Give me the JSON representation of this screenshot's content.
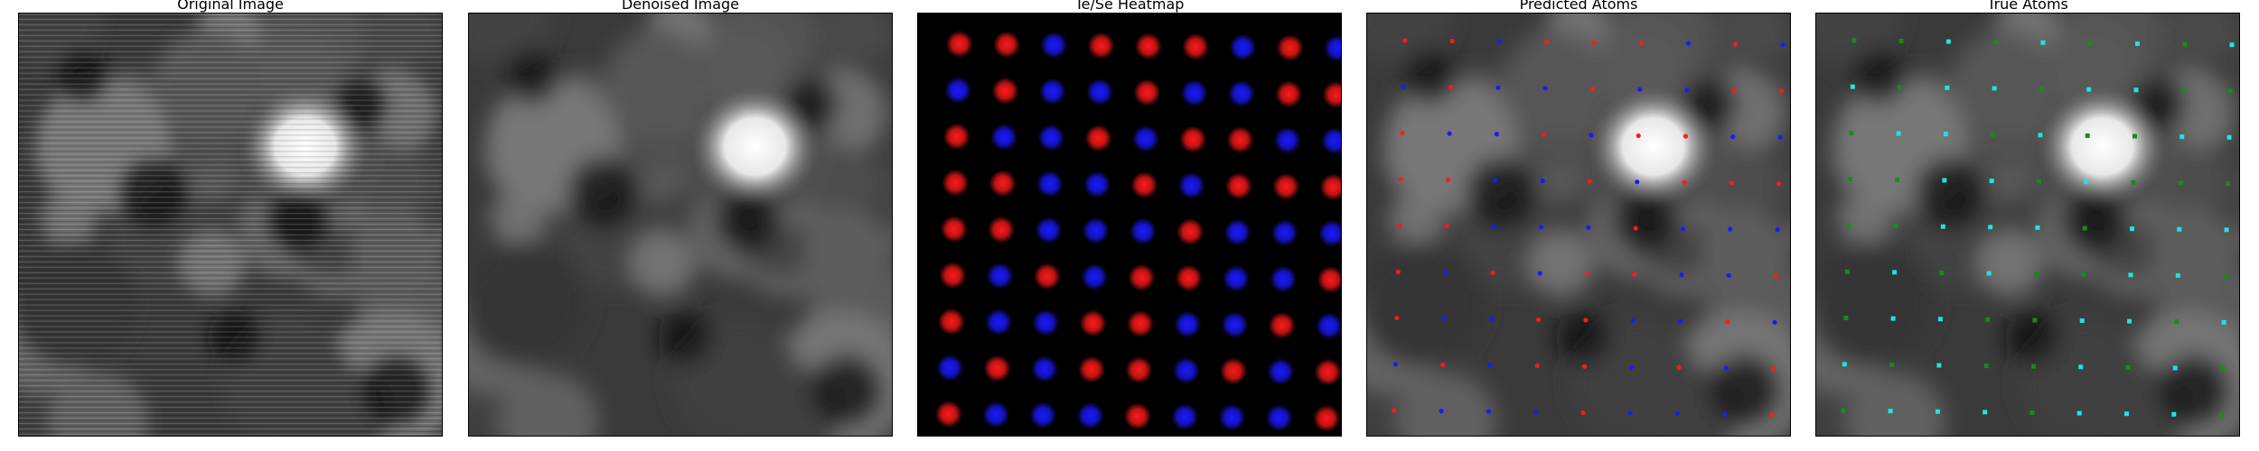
{
  "panels": [
    {
      "id": "original",
      "title": "Original Image",
      "kind": "grayscale",
      "blur": 9,
      "noise": true
    },
    {
      "id": "denoised",
      "title": "Denoised Image",
      "kind": "grayscale",
      "blur": 12,
      "noise": false
    },
    {
      "id": "heatmap",
      "title": "Te/Se Heatmap",
      "kind": "heatmap"
    },
    {
      "id": "predicted",
      "title": "Predicted Atoms",
      "kind": "grayscale",
      "blur": 12,
      "noise": false,
      "markers": "predicted"
    },
    {
      "id": "true",
      "title": "True Atoms",
      "kind": "grayscale",
      "blur": 12,
      "noise": false,
      "markers": "true"
    }
  ],
  "colors": {
    "te": "#ff1a1a",
    "se": "#1a1aff",
    "true_primary": "#19e6e6",
    "true_secondary": "#1a8a1a",
    "background_dark": "#000000"
  },
  "atoms": {
    "rows": 9,
    "cols": 9,
    "species": [
      [
        "te",
        "te",
        "se",
        "te",
        "te",
        "te",
        "se",
        "te",
        "se"
      ],
      [
        "se",
        "te",
        "se",
        "se",
        "te",
        "se",
        "se",
        "te",
        "te"
      ],
      [
        "te",
        "se",
        "se",
        "te",
        "se",
        "te",
        "te",
        "se",
        "se"
      ],
      [
        "te",
        "te",
        "se",
        "se",
        "te",
        "se",
        "te",
        "te",
        "te"
      ],
      [
        "te",
        "te",
        "se",
        "se",
        "se",
        "te",
        "se",
        "se",
        "se"
      ],
      [
        "te",
        "se",
        "te",
        "se",
        "te",
        "te",
        "se",
        "se",
        "te"
      ],
      [
        "te",
        "se",
        "se",
        "te",
        "te",
        "se",
        "se",
        "te",
        "se"
      ],
      [
        "se",
        "te",
        "se",
        "te",
        "te",
        "se",
        "te",
        "se",
        "te"
      ],
      [
        "te",
        "se",
        "se",
        "se",
        "te",
        "se",
        "se",
        "se",
        "te"
      ]
    ],
    "true_labels": [
      [
        "g",
        "g",
        "c",
        "g",
        "c",
        "g",
        "c",
        "g",
        "c"
      ],
      [
        "c",
        "g",
        "c",
        "c",
        "g",
        "c",
        "c",
        "g",
        "g"
      ],
      [
        "g",
        "c",
        "c",
        "g",
        "c",
        "g",
        "g",
        "c",
        "c"
      ],
      [
        "g",
        "g",
        "c",
        "c",
        "g",
        "c",
        "g",
        "g",
        "g"
      ],
      [
        "g",
        "g",
        "c",
        "c",
        "c",
        "g",
        "c",
        "c",
        "c"
      ],
      [
        "g",
        "c",
        "g",
        "c",
        "g",
        "g",
        "c",
        "c",
        "g"
      ],
      [
        "g",
        "c",
        "c",
        "g",
        "g",
        "c",
        "c",
        "g",
        "c"
      ],
      [
        "c",
        "g",
        "c",
        "g",
        "g",
        "c",
        "g",
        "c",
        "g"
      ],
      [
        "g",
        "c",
        "c",
        "c",
        "g",
        "c",
        "c",
        "c",
        "g"
      ]
    ]
  }
}
